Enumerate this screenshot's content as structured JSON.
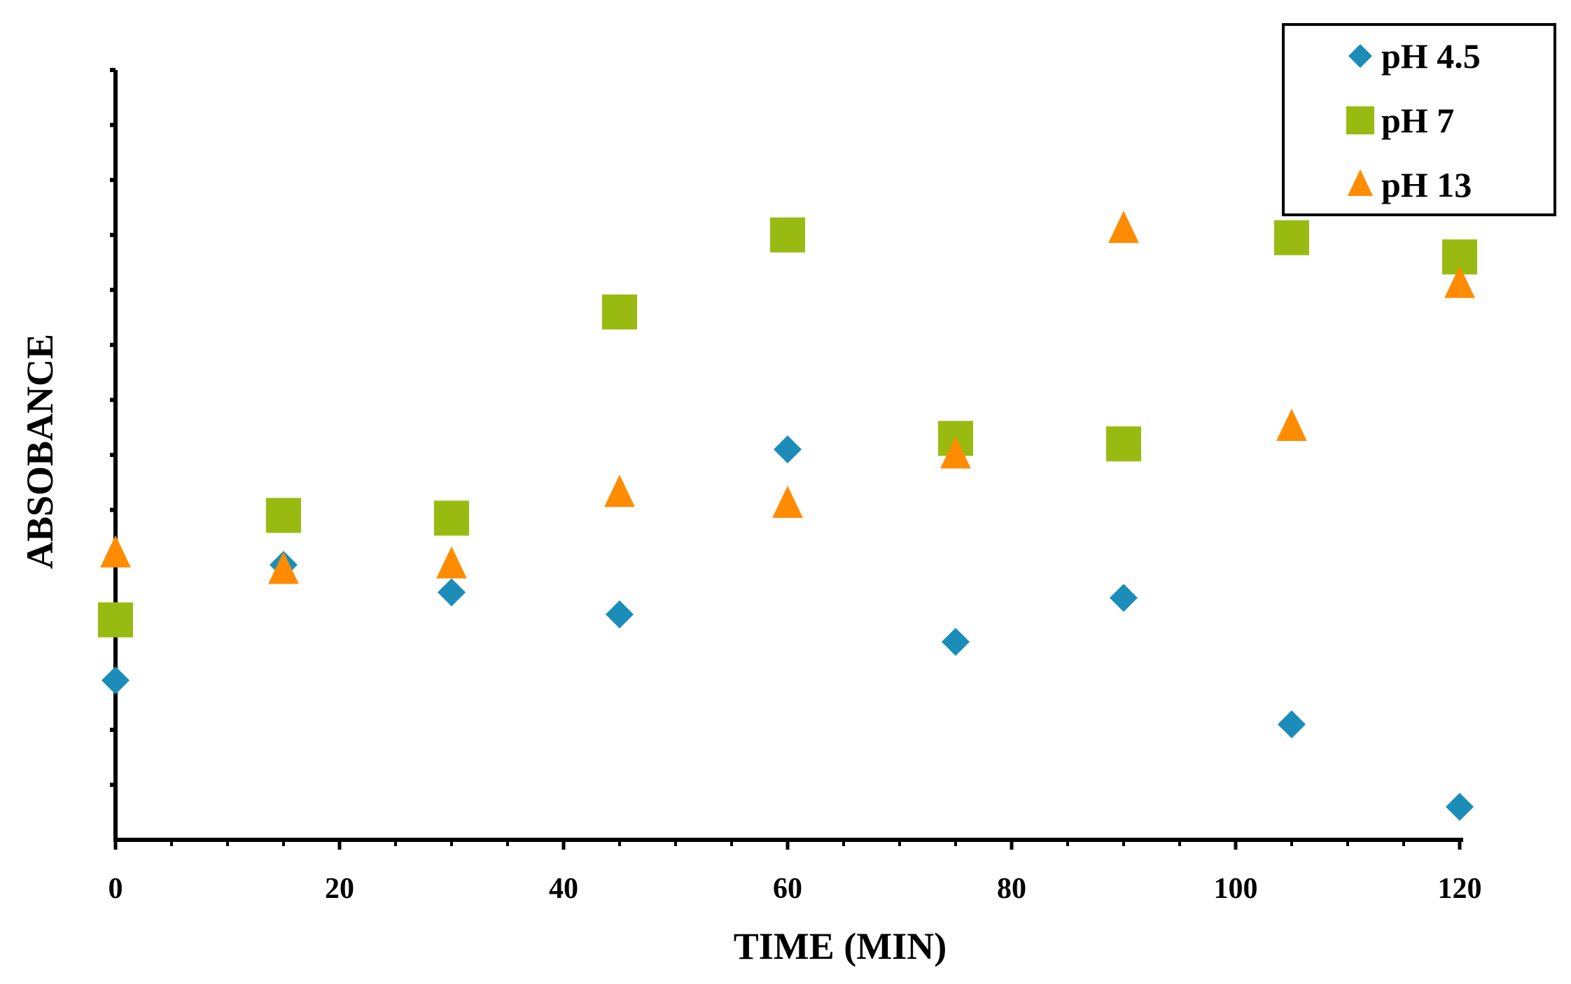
{
  "chart_data": {
    "type": "scatter",
    "title": "",
    "xlabel": "TIME (MIN)",
    "ylabel": "ABSOBANCE",
    "xlim": [
      0,
      120
    ],
    "ylim": [
      0,
      14
    ],
    "x_ticks": [
      "0",
      "20",
      "40",
      "60",
      "80",
      "100",
      "120"
    ],
    "x_tick_values": [
      0,
      20,
      40,
      60,
      80,
      100,
      120
    ],
    "y_tick_labels_visible": false,
    "grid": false,
    "legend_position": "top-right",
    "series": [
      {
        "name": "pH 4.5",
        "marker": "diamond",
        "color": "#1B8DB8",
        "x": [
          0,
          15,
          30,
          45,
          60,
          75,
          90,
          105,
          120
        ],
        "y": [
          2.9,
          5.0,
          4.5,
          4.1,
          7.1,
          3.6,
          4.4,
          2.1,
          0.6
        ]
      },
      {
        "name": "pH 7",
        "marker": "square",
        "color": "#99BB11",
        "x": [
          0,
          15,
          30,
          45,
          60,
          75,
          90,
          105,
          120
        ],
        "y": [
          4.0,
          5.9,
          5.85,
          9.6,
          11.0,
          7.3,
          7.2,
          10.95,
          10.6
        ]
      },
      {
        "name": "pH 13",
        "marker": "triangle",
        "color": "#FF8C00",
        "x": [
          0,
          15,
          30,
          45,
          60,
          75,
          90,
          105,
          120
        ],
        "y": [
          5.2,
          4.9,
          5.0,
          6.3,
          6.1,
          7.0,
          11.1,
          7.5,
          10.1
        ]
      }
    ]
  }
}
